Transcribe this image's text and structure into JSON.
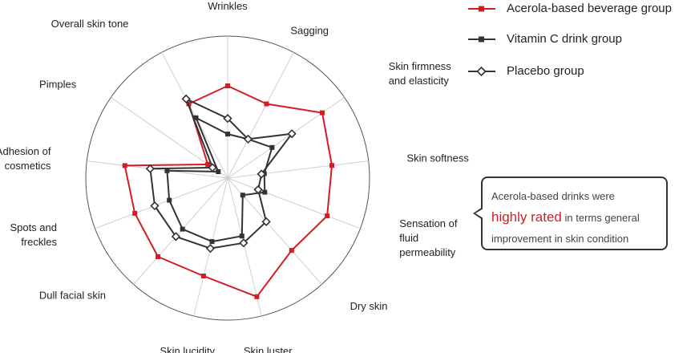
{
  "chart_data": {
    "type": "radar",
    "categories": [
      "Wrinkles",
      "Sagging",
      "Skin firmness|and elasticity",
      "Skin softness",
      "Sensation of|fluid|permeability",
      "Dry skin",
      "Skin luster",
      "Skin lucidity",
      "Dull facial skin",
      "Spots and|freckles",
      "Adhesion of|cosmetics",
      "Pimples",
      "Overall skin tone"
    ],
    "rlim": [
      0,
      1
    ],
    "series": [
      {
        "name": "Acerola-based beverage group",
        "color": "#d41c24",
        "marker": "square-filled",
        "values": [
          0.65,
          0.59,
          0.81,
          0.74,
          0.75,
          0.68,
          0.86,
          0.71,
          0.74,
          0.7,
          0.73,
          0.17,
          0.59
        ]
      },
      {
        "name": "Vitamin C drink group",
        "color": "#333333",
        "marker": "square-filled",
        "values": [
          0.31,
          0.31,
          0.38,
          0.26,
          0.28,
          0.16,
          0.42,
          0.46,
          0.48,
          0.44,
          0.43,
          0.08,
          0.48
        ]
      },
      {
        "name": "Placebo group",
        "color": "#333333",
        "marker": "diamond-open",
        "values": [
          0.42,
          0.31,
          0.55,
          0.24,
          0.23,
          0.41,
          0.47,
          0.51,
          0.55,
          0.55,
          0.55,
          0.13,
          0.63
        ]
      }
    ]
  },
  "callout": {
    "line1": "Acerola-based drinks were",
    "highlight": "highly rated",
    "rest": " in terms general",
    "line3": "improvement in skin condition"
  }
}
